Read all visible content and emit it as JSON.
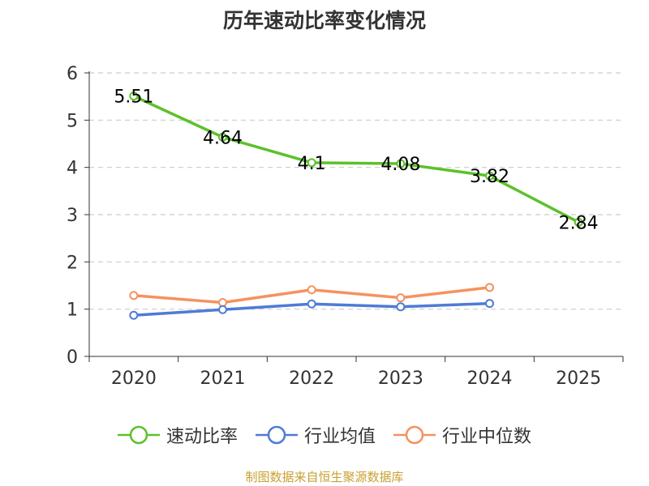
{
  "title": "历年速动比率变化情况",
  "source": "制图数据来自恒生聚源数据库",
  "chart_data": {
    "type": "line",
    "title": "历年速动比率变化情况",
    "categories": [
      "2020",
      "2021",
      "2022",
      "2023",
      "2024",
      "2025"
    ],
    "ylim": [
      0,
      6
    ],
    "yticks": [
      0,
      1,
      2,
      3,
      4,
      5,
      6
    ],
    "grid": true,
    "legend_position": "bottom",
    "series": [
      {
        "name": "速动比率",
        "color": "#5cc12a",
        "values": [
          5.51,
          4.64,
          4.1,
          4.08,
          3.82,
          2.84
        ],
        "labels": [
          "5.51",
          "4.64",
          "4.1",
          "4.08",
          "3.82",
          "2.84"
        ]
      },
      {
        "name": "行业均值",
        "color": "#4e7bd6",
        "values": [
          0.87,
          0.99,
          1.11,
          1.05,
          1.12,
          null
        ]
      },
      {
        "name": "行业中位数",
        "color": "#f59260",
        "values": [
          1.29,
          1.14,
          1.41,
          1.24,
          1.46,
          null
        ]
      }
    ]
  }
}
